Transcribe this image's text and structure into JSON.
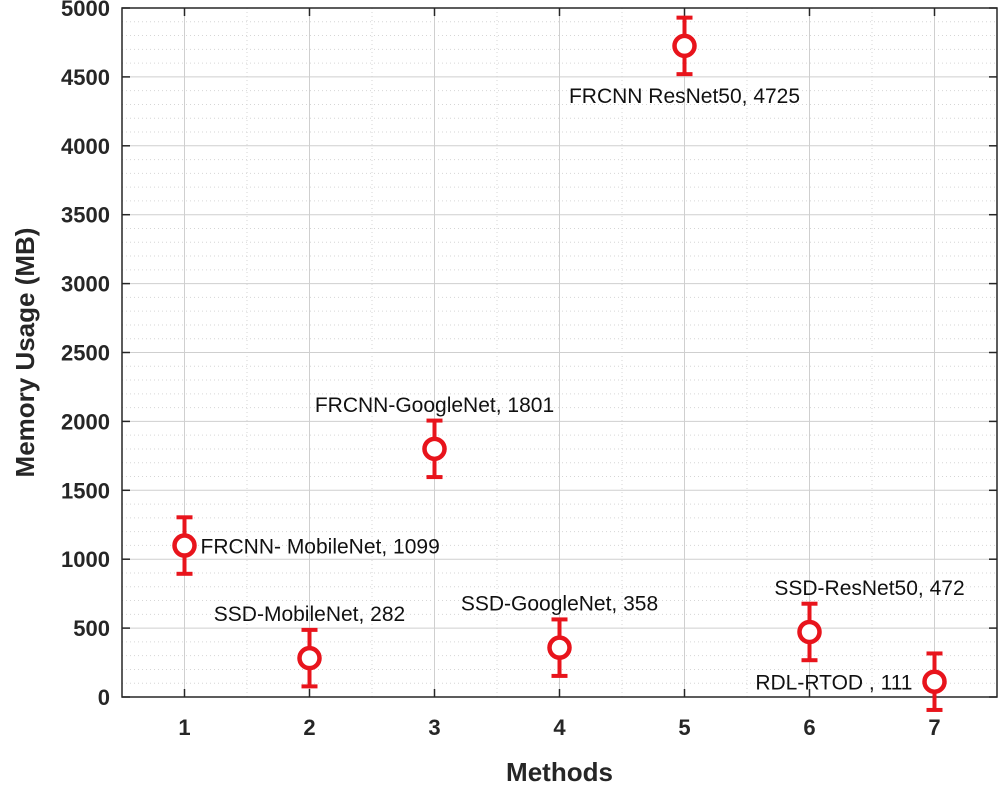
{
  "chart_data": {
    "type": "scatter",
    "title": "",
    "xlabel": "Methods",
    "ylabel": "Memory Usage (MB)",
    "xlim": [
      0.5,
      7.5
    ],
    "ylim": [
      0,
      5000
    ],
    "xticks": [
      1,
      2,
      3,
      4,
      5,
      6,
      7
    ],
    "yticks": [
      0,
      500,
      1000,
      1500,
      2000,
      2500,
      3000,
      3500,
      4000,
      4500,
      5000
    ],
    "grid": true,
    "marker_color": "#e8141c",
    "points": [
      {
        "x": 1,
        "y": 1099,
        "err": 205,
        "label": "FRCNN- MobileNet, 1099"
      },
      {
        "x": 2,
        "y": 282,
        "err": 205,
        "label": "SSD-MobileNet, 282"
      },
      {
        "x": 3,
        "y": 1801,
        "err": 205,
        "label": "FRCNN-GoogleNet, 1801"
      },
      {
        "x": 4,
        "y": 358,
        "err": 205,
        "label": "SSD-GoogleNet, 358"
      },
      {
        "x": 5,
        "y": 4725,
        "err": 205,
        "label": "FRCNN ResNet50, 4725"
      },
      {
        "x": 6,
        "y": 472,
        "err": 205,
        "label": "SSD-ResNet50, 472"
      },
      {
        "x": 7,
        "y": 111,
        "err": 205,
        "label": "RDL-RTOD , 111"
      }
    ]
  }
}
